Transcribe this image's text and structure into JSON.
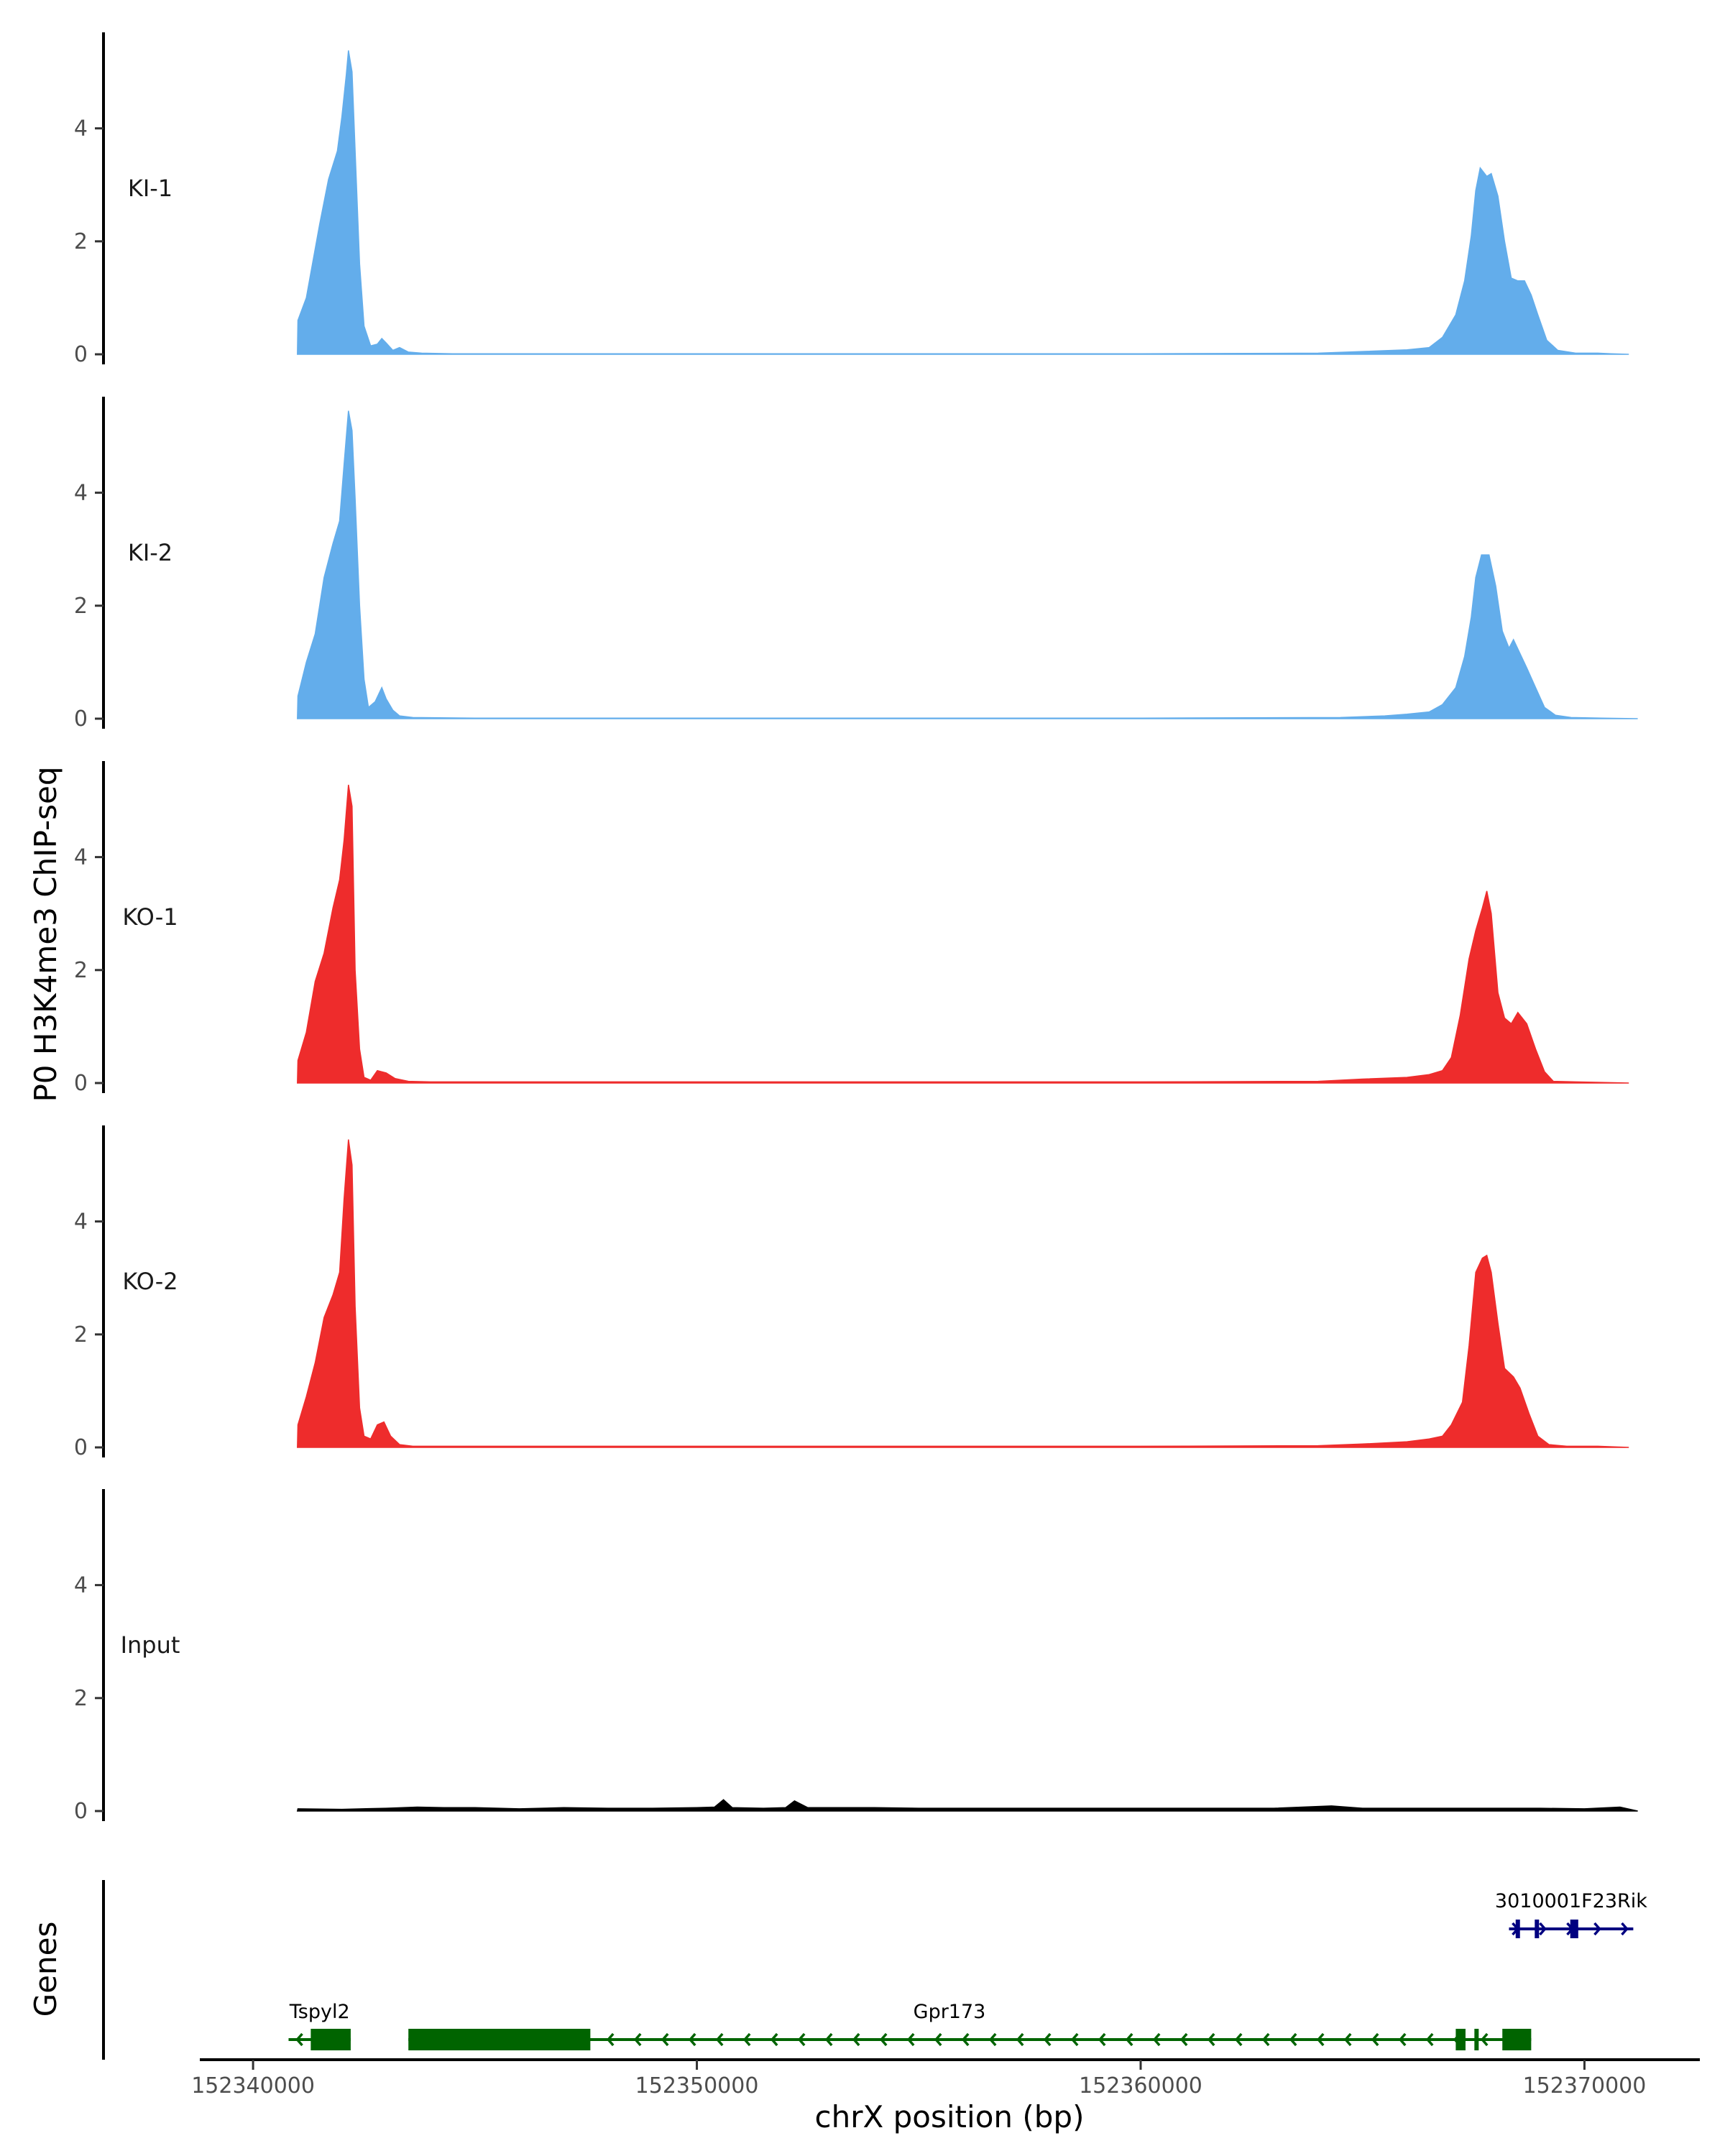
{
  "chart_data": {
    "type": "area",
    "title": "",
    "ylabel": "P0 H3K4me3 ChIP-seq",
    "xlabel": "chrX position (bp)",
    "xlim": [
      152338800,
      152372600
    ],
    "ylim": [
      0,
      5.7
    ],
    "y_ticks": [
      0,
      2,
      4
    ],
    "x_ticks": [
      152340000,
      152350000,
      152360000,
      152370000
    ],
    "x_tick_labels": [
      "152340000",
      "152350000",
      "152360000",
      "152370000"
    ],
    "grid": false,
    "legend": "none",
    "tracks": [
      {
        "name": "KI-1",
        "color": "#63ADEB",
        "points": [
          [
            152341000,
            0
          ],
          [
            152341010,
            0.6
          ],
          [
            152341200,
            1.0
          ],
          [
            152341500,
            2.3
          ],
          [
            152341700,
            3.1
          ],
          [
            152341900,
            3.6
          ],
          [
            152342000,
            4.2
          ],
          [
            152342100,
            4.95
          ],
          [
            152342150,
            5.38
          ],
          [
            152342230,
            5.0
          ],
          [
            152342300,
            3.6
          ],
          [
            152342400,
            1.6
          ],
          [
            152342500,
            0.5
          ],
          [
            152342650,
            0.15
          ],
          [
            152342800,
            0.18
          ],
          [
            152342900,
            0.28
          ],
          [
            152343000,
            0.2
          ],
          [
            152343150,
            0.07
          ],
          [
            152343300,
            0.12
          ],
          [
            152343500,
            0.04
          ],
          [
            152343800,
            0.02
          ],
          [
            152344500,
            0.01
          ],
          [
            152347000,
            0.01
          ],
          [
            152350000,
            0.01
          ],
          [
            152355000,
            0.01
          ],
          [
            152360000,
            0.01
          ],
          [
            152364000,
            0.02
          ],
          [
            152365000,
            0.05
          ],
          [
            152366000,
            0.08
          ],
          [
            152366500,
            0.12
          ],
          [
            152366800,
            0.3
          ],
          [
            152367100,
            0.7
          ],
          [
            152367300,
            1.3
          ],
          [
            152367450,
            2.1
          ],
          [
            152367550,
            2.9
          ],
          [
            152367650,
            3.3
          ],
          [
            152367800,
            3.15
          ],
          [
            152367900,
            3.2
          ],
          [
            152368050,
            2.8
          ],
          [
            152368200,
            2.0
          ],
          [
            152368350,
            1.35
          ],
          [
            152368500,
            1.3
          ],
          [
            152368650,
            1.3
          ],
          [
            152368800,
            1.05
          ],
          [
            152368950,
            0.7
          ],
          [
            152369150,
            0.25
          ],
          [
            152369400,
            0.07
          ],
          [
            152369800,
            0.02
          ],
          [
            152370300,
            0.02
          ],
          [
            152370600,
            0.01
          ],
          [
            152371000,
            0
          ]
        ]
      },
      {
        "name": "KI-2",
        "color": "#63ADEB",
        "points": [
          [
            152341000,
            0
          ],
          [
            152341010,
            0.4
          ],
          [
            152341200,
            1.0
          ],
          [
            152341400,
            1.5
          ],
          [
            152341600,
            2.5
          ],
          [
            152341800,
            3.1
          ],
          [
            152341950,
            3.5
          ],
          [
            152342050,
            4.5
          ],
          [
            152342150,
            5.45
          ],
          [
            152342230,
            5.1
          ],
          [
            152342300,
            3.9
          ],
          [
            152342400,
            2.0
          ],
          [
            152342500,
            0.7
          ],
          [
            152342600,
            0.2
          ],
          [
            152342750,
            0.3
          ],
          [
            152342900,
            0.55
          ],
          [
            152343000,
            0.35
          ],
          [
            152343150,
            0.15
          ],
          [
            152343300,
            0.05
          ],
          [
            152343600,
            0.02
          ],
          [
            152345000,
            0.01
          ],
          [
            152350000,
            0.01
          ],
          [
            152355000,
            0.01
          ],
          [
            152360000,
            0.01
          ],
          [
            152364500,
            0.02
          ],
          [
            152365500,
            0.05
          ],
          [
            152366000,
            0.08
          ],
          [
            152366500,
            0.12
          ],
          [
            152366800,
            0.25
          ],
          [
            152367100,
            0.55
          ],
          [
            152367300,
            1.1
          ],
          [
            152367450,
            1.8
          ],
          [
            152367550,
            2.5
          ],
          [
            152367680,
            2.9
          ],
          [
            152367850,
            2.9
          ],
          [
            152368000,
            2.35
          ],
          [
            152368150,
            1.55
          ],
          [
            152368300,
            1.25
          ],
          [
            152368400,
            1.4
          ],
          [
            152368550,
            1.15
          ],
          [
            152368700,
            0.9
          ],
          [
            152368900,
            0.55
          ],
          [
            152369100,
            0.2
          ],
          [
            152369350,
            0.06
          ],
          [
            152369700,
            0.02
          ],
          [
            152370400,
            0.01
          ],
          [
            152371200,
            0
          ]
        ]
      },
      {
        "name": "KO-1",
        "color": "#EE2C2C",
        "points": [
          [
            152341000,
            0
          ],
          [
            152341010,
            0.4
          ],
          [
            152341200,
            0.9
          ],
          [
            152341400,
            1.8
          ],
          [
            152341600,
            2.3
          ],
          [
            152341800,
            3.1
          ],
          [
            152341950,
            3.6
          ],
          [
            152342050,
            4.3
          ],
          [
            152342150,
            5.28
          ],
          [
            152342230,
            4.9
          ],
          [
            152342300,
            2.0
          ],
          [
            152342400,
            0.6
          ],
          [
            152342500,
            0.1
          ],
          [
            152342650,
            0.05
          ],
          [
            152342800,
            0.22
          ],
          [
            152343000,
            0.18
          ],
          [
            152343200,
            0.08
          ],
          [
            152343500,
            0.03
          ],
          [
            152344000,
            0.02
          ],
          [
            152345000,
            0.02
          ],
          [
            152350000,
            0.02
          ],
          [
            152355000,
            0.02
          ],
          [
            152360000,
            0.02
          ],
          [
            152364000,
            0.03
          ],
          [
            152365000,
            0.07
          ],
          [
            152366000,
            0.1
          ],
          [
            152366500,
            0.15
          ],
          [
            152366800,
            0.22
          ],
          [
            152367000,
            0.45
          ],
          [
            152367200,
            1.2
          ],
          [
            152367400,
            2.2
          ],
          [
            152367550,
            2.7
          ],
          [
            152367700,
            3.1
          ],
          [
            152367800,
            3.4
          ],
          [
            152367900,
            3.0
          ],
          [
            152368050,
            1.6
          ],
          [
            152368200,
            1.15
          ],
          [
            152368350,
            1.05
          ],
          [
            152368500,
            1.25
          ],
          [
            152368700,
            1.05
          ],
          [
            152368900,
            0.6
          ],
          [
            152369100,
            0.2
          ],
          [
            152369300,
            0.03
          ],
          [
            152369800,
            0.02
          ],
          [
            152371000,
            0
          ]
        ]
      },
      {
        "name": "KO-2",
        "color": "#EE2C2C",
        "points": [
          [
            152341000,
            0
          ],
          [
            152341010,
            0.4
          ],
          [
            152341200,
            0.9
          ],
          [
            152341400,
            1.5
          ],
          [
            152341600,
            2.3
          ],
          [
            152341800,
            2.7
          ],
          [
            152341950,
            3.1
          ],
          [
            152342050,
            4.4
          ],
          [
            152342150,
            5.45
          ],
          [
            152342230,
            5.0
          ],
          [
            152342300,
            2.5
          ],
          [
            152342400,
            0.7
          ],
          [
            152342500,
            0.2
          ],
          [
            152342650,
            0.15
          ],
          [
            152342800,
            0.4
          ],
          [
            152342950,
            0.45
          ],
          [
            152343100,
            0.2
          ],
          [
            152343300,
            0.05
          ],
          [
            152343600,
            0.02
          ],
          [
            152345000,
            0.02
          ],
          [
            152350000,
            0.02
          ],
          [
            152355000,
            0.02
          ],
          [
            152360000,
            0.02
          ],
          [
            152364000,
            0.03
          ],
          [
            152365000,
            0.06
          ],
          [
            152366000,
            0.1
          ],
          [
            152366500,
            0.15
          ],
          [
            152366800,
            0.2
          ],
          [
            152367000,
            0.4
          ],
          [
            152367250,
            0.8
          ],
          [
            152367400,
            1.8
          ],
          [
            152367550,
            3.1
          ],
          [
            152367700,
            3.35
          ],
          [
            152367800,
            3.4
          ],
          [
            152367900,
            3.1
          ],
          [
            152368050,
            2.2
          ],
          [
            152368200,
            1.4
          ],
          [
            152368400,
            1.25
          ],
          [
            152368550,
            1.05
          ],
          [
            152368750,
            0.6
          ],
          [
            152368950,
            0.2
          ],
          [
            152369200,
            0.05
          ],
          [
            152369600,
            0.02
          ],
          [
            152370300,
            0.02
          ],
          [
            152371000,
            0
          ]
        ]
      },
      {
        "name": "Input",
        "color": "#000000",
        "points": [
          [
            152341000,
            0
          ],
          [
            152341010,
            0.04
          ],
          [
            152342000,
            0.03
          ],
          [
            152343000,
            0.05
          ],
          [
            152343700,
            0.07
          ],
          [
            152344300,
            0.06
          ],
          [
            152345000,
            0.06
          ],
          [
            152346000,
            0.04
          ],
          [
            152347000,
            0.06
          ],
          [
            152348000,
            0.05
          ],
          [
            152349000,
            0.05
          ],
          [
            152350000,
            0.06
          ],
          [
            152350400,
            0.07
          ],
          [
            152350600,
            0.2
          ],
          [
            152350800,
            0.06
          ],
          [
            152351500,
            0.05
          ],
          [
            152352000,
            0.06
          ],
          [
            152352200,
            0.18
          ],
          [
            152352500,
            0.06
          ],
          [
            152354000,
            0.06
          ],
          [
            152355000,
            0.05
          ],
          [
            152357000,
            0.05
          ],
          [
            152360000,
            0.05
          ],
          [
            152363000,
            0.05
          ],
          [
            152364300,
            0.09
          ],
          [
            152365000,
            0.05
          ],
          [
            152366000,
            0.05
          ],
          [
            152367000,
            0.05
          ],
          [
            152368000,
            0.05
          ],
          [
            152369000,
            0.05
          ],
          [
            152370000,
            0.04
          ],
          [
            152370800,
            0.07
          ],
          [
            152371200,
            0
          ]
        ]
      }
    ],
    "genes_track": {
      "label": "Genes",
      "genes": [
        {
          "name": "Tspyl2",
          "strand": "-",
          "color": "#006400",
          "row": 1,
          "start": 152340800,
          "end": 152342200,
          "exons": [
            [
              152341300,
              152342200
            ]
          ]
        },
        {
          "name": "Gpr173",
          "strand": "-",
          "color": "#006400",
          "row": 1,
          "start": 152343500,
          "end": 152368800,
          "exons": [
            [
              152343500,
              152347600
            ],
            [
              152367100,
              152367320
            ],
            [
              152367520,
              152367580
            ],
            [
              152368150,
              152368800
            ]
          ]
        },
        {
          "name": "3010001F23Rik",
          "strand": "+",
          "color": "#000080",
          "row": 0,
          "start": 152368300,
          "end": 152371100,
          "exons": [
            [
              152368450,
              152368520
            ],
            [
              152368880,
              152368940
            ],
            [
              152369680,
              152369860
            ]
          ]
        }
      ]
    }
  }
}
